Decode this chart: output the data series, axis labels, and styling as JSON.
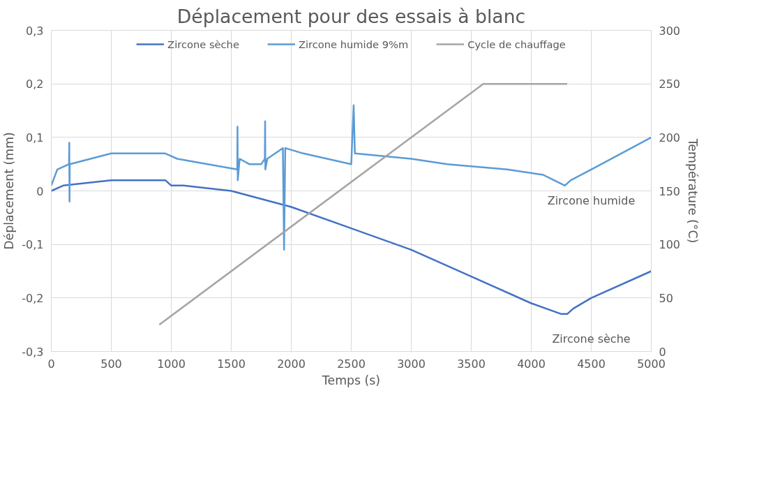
{
  "chart_data": {
    "type": "line",
    "title": "Déplacement pour des essais à blanc",
    "xlabel": "Temps (s)",
    "ylabel": "Déplacement (mm)",
    "y2label": "Température (°C)",
    "series": [
      {
        "name": "Zircone sèche",
        "color": "#4472c4",
        "x": [
          0,
          100,
          500,
          900,
          950,
          1000,
          1100,
          1500,
          2000,
          2500,
          3000,
          3500,
          4000,
          4250,
          4300,
          4350,
          4500,
          5000
        ],
        "values": [
          0.0,
          0.01,
          0.02,
          0.02,
          0.02,
          0.01,
          0.01,
          0.0,
          -0.03,
          -0.07,
          -0.11,
          -0.16,
          -0.21,
          -0.23,
          -0.23,
          -0.22,
          -0.2,
          -0.15
        ]
      },
      {
        "name": "Zircone humide 9%m",
        "color": "#5b9bd5",
        "x": [
          0,
          50,
          148,
          150,
          152,
          154,
          500,
          900,
          950,
          1050,
          1550,
          1552,
          1554,
          1570,
          1650,
          1750,
          1780,
          1782,
          1784,
          1800,
          1930,
          1940,
          1950,
          2100,
          2500,
          2520,
          2530,
          3000,
          3300,
          3800,
          4100,
          4280,
          4330,
          4500,
          5000
        ],
        "values": [
          0.01,
          0.04,
          0.05,
          0.09,
          -0.02,
          0.05,
          0.07,
          0.07,
          0.07,
          0.06,
          0.04,
          0.12,
          0.02,
          0.06,
          0.05,
          0.05,
          0.06,
          0.13,
          0.04,
          0.06,
          0.08,
          -0.11,
          0.08,
          0.07,
          0.05,
          0.16,
          0.07,
          0.06,
          0.05,
          0.04,
          0.03,
          0.01,
          0.02,
          0.04,
          0.1
        ]
      },
      {
        "name": "Cycle de chauffage",
        "color": "#a5a5a5",
        "axis": "y2",
        "x": [
          900,
          3600,
          4300
        ],
        "values": [
          25,
          250,
          250
        ]
      }
    ],
    "xlim": [
      0,
      5000
    ],
    "xticks": [
      0,
      500,
      1000,
      1500,
      2000,
      2500,
      3000,
      3500,
      4000,
      4500,
      5000
    ],
    "ylim": [
      -0.3,
      0.3
    ],
    "yticks": [
      {
        "value": -0.3,
        "label": "-0,3"
      },
      {
        "value": -0.2,
        "label": "-0,2"
      },
      {
        "value": -0.1,
        "label": "-0,1"
      },
      0,
      {
        "value": 0.1,
        "label": "0,1"
      },
      {
        "value": 0.2,
        "label": "0,2"
      },
      {
        "value": 0.3,
        "label": "0,3"
      }
    ],
    "y2lim": [
      0,
      300
    ],
    "y2ticks": [
      0,
      50,
      100,
      150,
      200,
      250,
      300
    ],
    "annotations": [
      "Zircone humide",
      "Zircone sèche"
    ],
    "grid": true,
    "legend": "top",
    "marker": "none",
    "line_style": "solid"
  }
}
